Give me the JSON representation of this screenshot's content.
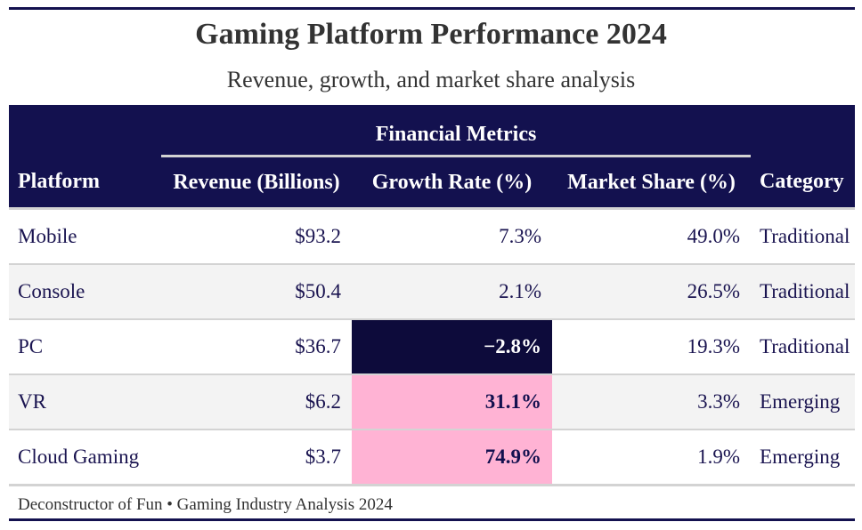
{
  "header": {
    "title": "Gaming Platform Performance 2024",
    "subtitle": "Revenue, growth, and market share analysis"
  },
  "table": {
    "spanner_label": "Financial Metrics",
    "columns": [
      "Platform",
      "Revenue (Billions)",
      "Growth Rate (%)",
      "Market Share (%)",
      "Category"
    ],
    "rows": [
      {
        "platform": "Mobile",
        "revenue": "$93.2",
        "growth": "7.3%",
        "share": "49.0%",
        "category": "Traditional"
      },
      {
        "platform": "Console",
        "revenue": "$50.4",
        "growth": "2.1%",
        "share": "26.5%",
        "category": "Traditional"
      },
      {
        "platform": "PC",
        "revenue": "$36.7",
        "growth": "−2.8%",
        "share": "19.3%",
        "category": "Traditional"
      },
      {
        "platform": "VR",
        "revenue": "$6.2",
        "growth": "31.1%",
        "share": "3.3%",
        "category": "Emerging"
      },
      {
        "platform": "Cloud Gaming",
        "revenue": "$3.7",
        "growth": "74.9%",
        "share": "1.9%",
        "category": "Emerging"
      }
    ],
    "footer": "Deconstructor of Fun • Gaming Industry Analysis 2024"
  },
  "colors": {
    "header_bg": "#13114f",
    "negative_highlight": "#0d0b3b",
    "high_growth_highlight": "#ffb3d4",
    "stripe": "#f3f3f3"
  },
  "chart_data": {
    "type": "table",
    "title": "Gaming Platform Performance 2024",
    "subtitle": "Revenue, growth, and market share analysis",
    "columns": [
      "Platform",
      "Revenue (Billions)",
      "Growth Rate (%)",
      "Market Share (%)",
      "Category"
    ],
    "categories": [
      "Mobile",
      "Console",
      "PC",
      "VR",
      "Cloud Gaming"
    ],
    "series": [
      {
        "name": "Revenue (Billions)",
        "values": [
          93.2,
          50.4,
          36.7,
          6.2,
          3.7
        ]
      },
      {
        "name": "Growth Rate (%)",
        "values": [
          7.3,
          2.1,
          -2.8,
          31.1,
          74.9
        ]
      },
      {
        "name": "Market Share (%)",
        "values": [
          49.0,
          26.5,
          19.3,
          3.3,
          1.9
        ]
      }
    ],
    "category_labels": [
      "Traditional",
      "Traditional",
      "Traditional",
      "Emerging",
      "Emerging"
    ]
  }
}
